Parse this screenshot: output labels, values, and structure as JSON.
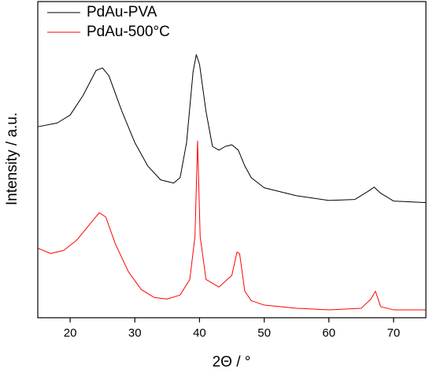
{
  "chart_data": {
    "type": "line",
    "xlabel": "2Θ / °",
    "ylabel": "Intensity / a.u.",
    "xlim": [
      15,
      75
    ],
    "xticks": [
      20,
      30,
      40,
      50,
      60,
      70
    ],
    "ylim": [
      0,
      100
    ],
    "legend": "top-left",
    "series": [
      {
        "name": "PdAu-PVA",
        "color": "#000000",
        "x": [
          15,
          18,
          20,
          22,
          24,
          25,
          26,
          28,
          30,
          32,
          34,
          36,
          37,
          38,
          39,
          39.5,
          40,
          41,
          42,
          43,
          44,
          45,
          46,
          47,
          48,
          50,
          55,
          60,
          64,
          66,
          67,
          68,
          70,
          75
        ],
        "values": [
          60.4,
          61.6,
          64.1,
          70.3,
          78.2,
          79.0,
          76.5,
          65.3,
          55.4,
          48.0,
          43.6,
          42.6,
          44.3,
          55.4,
          77.7,
          83.2,
          80.2,
          65.3,
          54.2,
          53.0,
          54.2,
          54.7,
          53.0,
          48.0,
          44.3,
          41.1,
          38.6,
          37.1,
          37.4,
          39.9,
          41.3,
          39.4,
          36.9,
          36.4
        ]
      },
      {
        "name": "PdAu-500°C",
        "color": "#ff0000",
        "x": [
          15,
          17,
          19,
          21,
          23,
          24.5,
          25.5,
          27,
          29,
          31,
          33,
          35,
          37,
          38.5,
          39.3,
          39.7,
          40.1,
          41,
          43,
          45,
          45.8,
          46.2,
          47,
          48,
          50,
          55,
          60,
          65,
          66.5,
          67.2,
          68,
          70,
          75
        ],
        "values": [
          22.0,
          20.3,
          21.3,
          24.5,
          29.5,
          33.2,
          31.9,
          23.3,
          14.6,
          8.9,
          6.4,
          5.9,
          7.2,
          12.1,
          25.7,
          55.9,
          25.7,
          12.1,
          9.7,
          13.4,
          20.8,
          20.3,
          8.4,
          5.4,
          4.0,
          3.0,
          2.5,
          3.0,
          5.9,
          8.4,
          3.5,
          2.5,
          2.5
        ]
      }
    ]
  }
}
